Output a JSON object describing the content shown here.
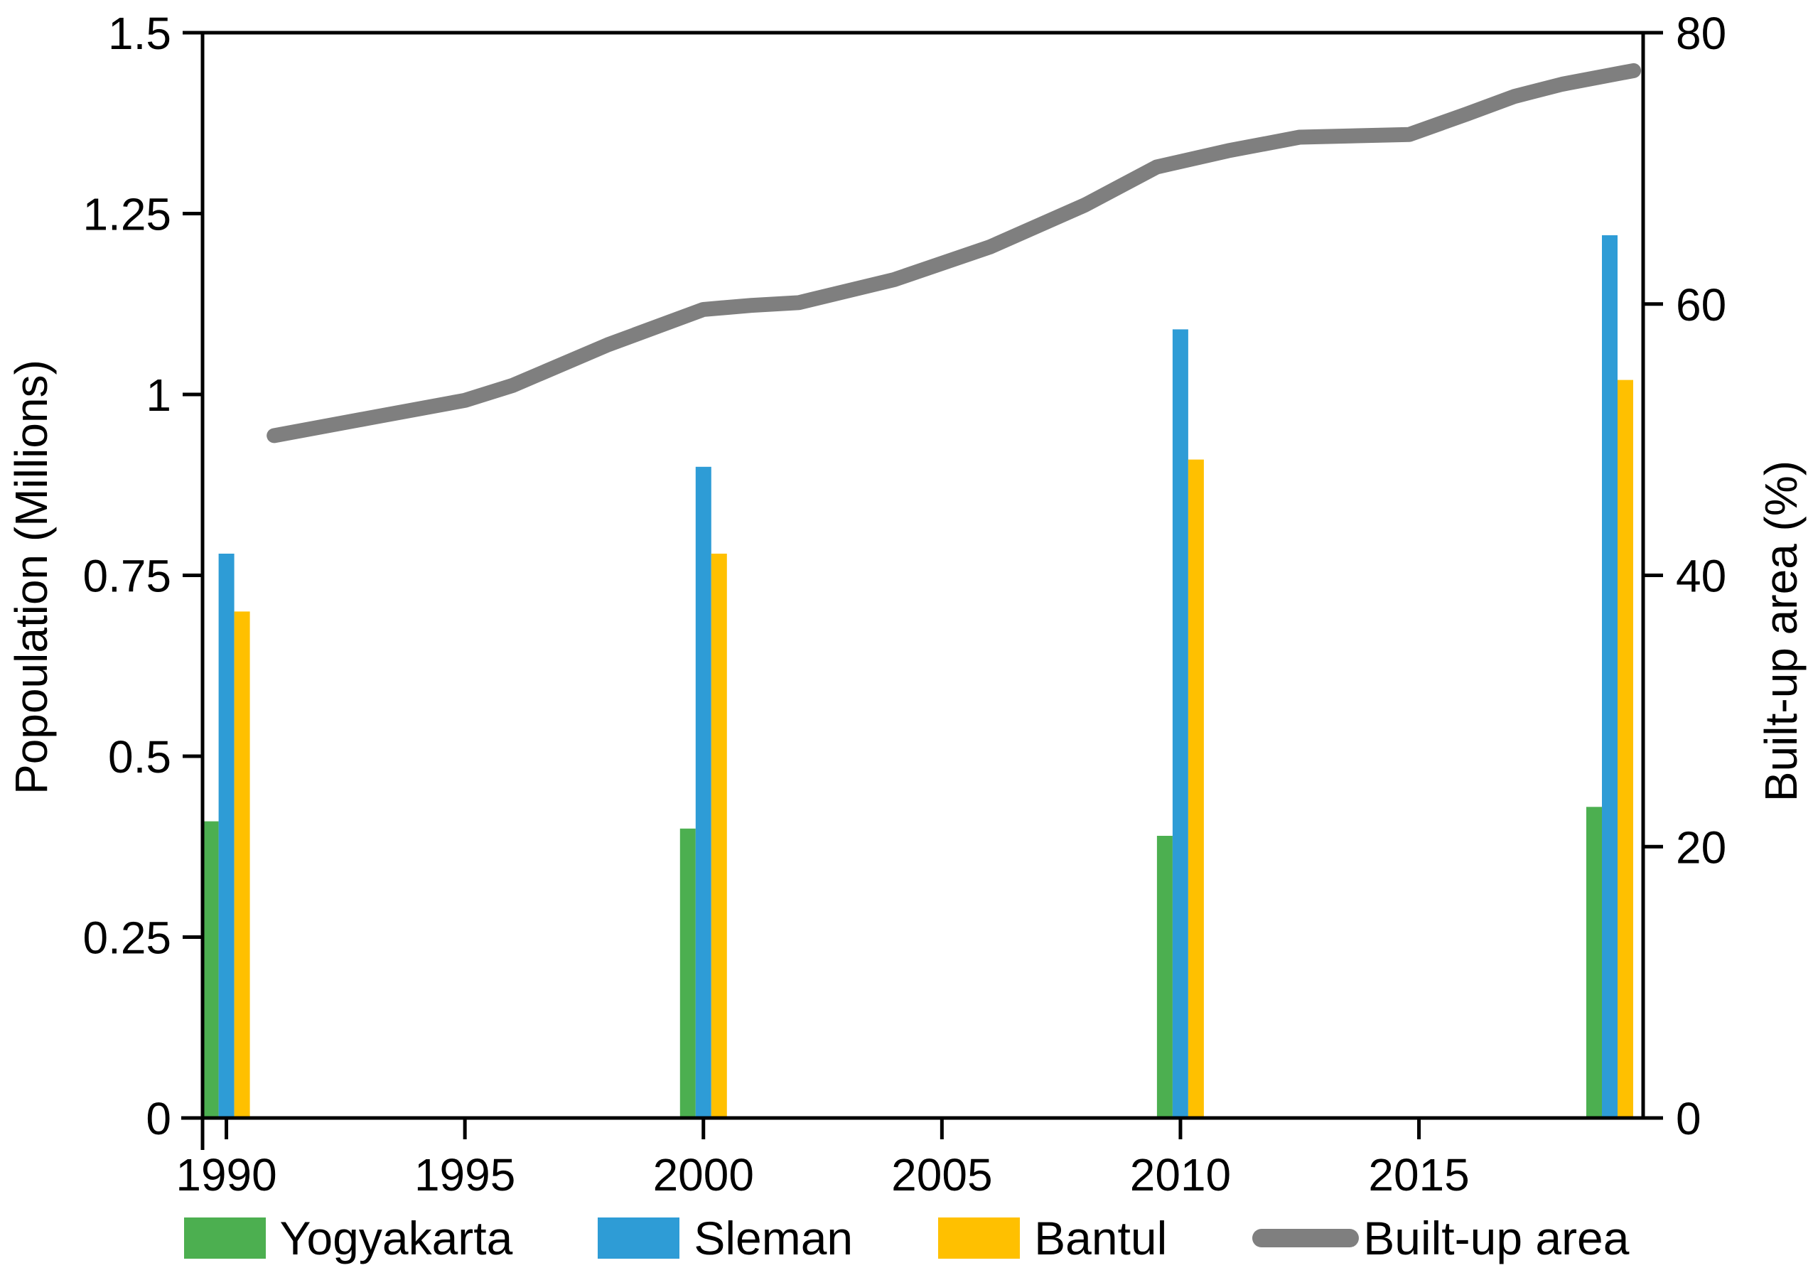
{
  "chart_data": {
    "type": "bar+line",
    "title": "",
    "categories": [
      1990,
      2000,
      2010,
      2019
    ],
    "bar_series": [
      {
        "name": "Yogyakarta",
        "color": "#4CAF50",
        "values": [
          0.41,
          0.4,
          0.39,
          0.43
        ]
      },
      {
        "name": "Sleman",
        "color": "#2E9CD6",
        "values": [
          0.78,
          0.9,
          1.09,
          1.22
        ]
      },
      {
        "name": "Bantul",
        "color": "#FFC000",
        "values": [
          0.7,
          0.78,
          0.91,
          1.02
        ]
      }
    ],
    "line_series": {
      "name": "Built-up area",
      "color": "#7F7F7F",
      "axis": "right",
      "points": [
        [
          1991,
          50.3
        ],
        [
          1993,
          51.6
        ],
        [
          1995,
          52.9
        ],
        [
          1996,
          54.0
        ],
        [
          1998,
          57.0
        ],
        [
          2000,
          59.6
        ],
        [
          2001,
          59.9
        ],
        [
          2002,
          60.1
        ],
        [
          2004,
          61.8
        ],
        [
          2006,
          64.2
        ],
        [
          2008,
          67.3
        ],
        [
          2009.5,
          70.1
        ],
        [
          2011,
          71.3
        ],
        [
          2012.5,
          72.3
        ],
        [
          2014.8,
          72.5
        ],
        [
          2016,
          74.0
        ],
        [
          2017,
          75.3
        ],
        [
          2018,
          76.2
        ],
        [
          2019.5,
          77.2
        ]
      ]
    },
    "left_axis": {
      "label": "Popoulation (Millions)",
      "min": 0,
      "max": 1.5,
      "ticks": [
        "0",
        "0.25",
        "0.5",
        "0.75",
        "1",
        "1.25",
        "1.5"
      ]
    },
    "right_axis": {
      "label": "Built-up area (%)",
      "min": 0,
      "max": 80,
      "ticks": [
        "0",
        "20",
        "40",
        "60",
        "80"
      ]
    },
    "x_axis": {
      "min": 1989.5,
      "max": 2019.7,
      "tick_years": [
        1990,
        1995,
        2000,
        2005,
        2010,
        2015
      ]
    },
    "legend_labels": [
      "Yogyakarta",
      "Sleman",
      "Bantul",
      "Built-up area"
    ],
    "layout": {
      "legend_position": "bottom",
      "grid": "off",
      "frame": "box"
    }
  }
}
